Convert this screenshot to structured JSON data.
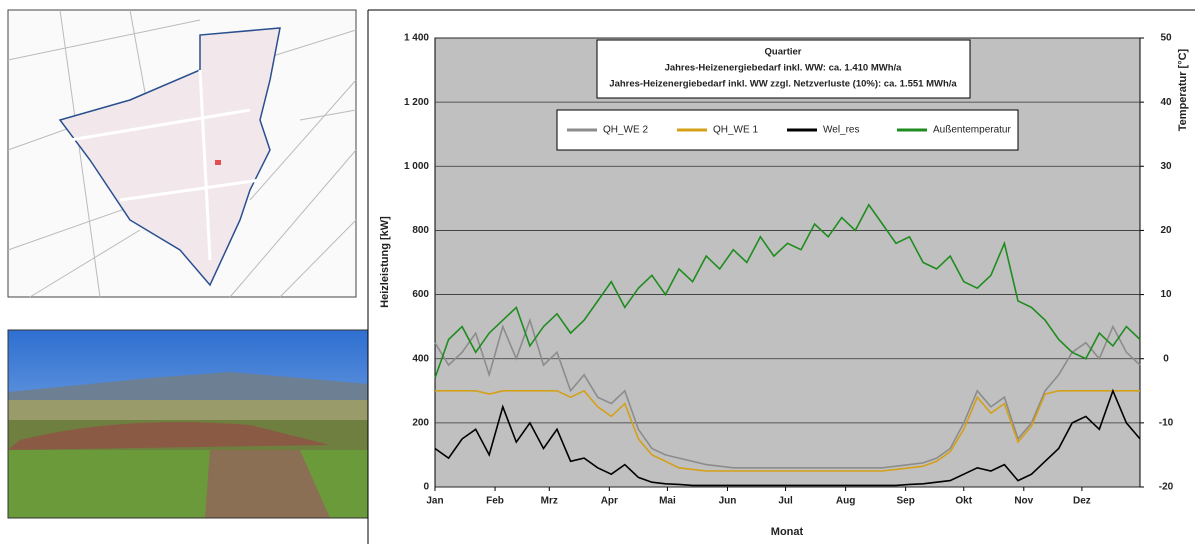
{
  "chart_data": {
    "type": "line",
    "annotations": [
      "Quartier",
      "Jahres-Heizenergiebedarf inkl. WW: ca. 1.410 MWh/a",
      "Jahres-Heizenergiebedarf inkl. WW zzgl. Netzverluste (10%): ca. 1.551 MWh/a"
    ],
    "xlabel": "Monat",
    "ylabel": "Heizleistung [kW]",
    "y2label": "Temperatur [°C]",
    "grid": true,
    "background": "#c0c0c0",
    "x": [
      1,
      8,
      15,
      22,
      29,
      36,
      43,
      50,
      57,
      64,
      71,
      78,
      85,
      92,
      99,
      106,
      113,
      120,
      127,
      134,
      141,
      148,
      155,
      162,
      169,
      176,
      183,
      190,
      197,
      204,
      211,
      218,
      225,
      232,
      239,
      246,
      253,
      260,
      267,
      274,
      281,
      288,
      295,
      302,
      309,
      316,
      323,
      330,
      337,
      344,
      351,
      358,
      365
    ],
    "xlim": [
      1,
      365
    ],
    "xticks": [
      {
        "value": 1,
        "label": "Jan"
      },
      {
        "value": 32,
        "label": "Feb"
      },
      {
        "value": 60,
        "label": "Mrz"
      },
      {
        "value": 91,
        "label": "Apr"
      },
      {
        "value": 121,
        "label": "Mai"
      },
      {
        "value": 152,
        "label": "Jun"
      },
      {
        "value": 182,
        "label": "Jul"
      },
      {
        "value": 213,
        "label": "Aug"
      },
      {
        "value": 244,
        "label": "Sep"
      },
      {
        "value": 274,
        "label": "Okt"
      },
      {
        "value": 305,
        "label": "Nov"
      },
      {
        "value": 335,
        "label": "Dez"
      }
    ],
    "ylim": [
      0,
      1400
    ],
    "yticks": [
      0,
      200,
      400,
      600,
      800,
      {
        "value": 1000,
        "label": "1 000"
      },
      {
        "value": 1200,
        "label": "1 200"
      },
      {
        "value": 1400,
        "label": "1 400"
      }
    ],
    "y2lim": [
      -20,
      50
    ],
    "y2ticks": [
      -20,
      -10,
      0,
      10,
      20,
      30,
      40,
      50
    ],
    "series": [
      {
        "name": "QH_WE 2",
        "color": "#8c8c8c",
        "values": [
          450,
          380,
          420,
          480,
          350,
          500,
          400,
          520,
          380,
          420,
          300,
          350,
          280,
          260,
          300,
          180,
          120,
          100,
          90,
          80,
          70,
          65,
          60,
          60,
          60,
          60,
          60,
          60,
          60,
          60,
          60,
          60,
          60,
          60,
          65,
          70,
          75,
          90,
          120,
          200,
          300,
          250,
          280,
          150,
          200,
          300,
          350,
          420,
          450,
          400,
          500,
          420,
          380
        ]
      },
      {
        "name": "QH_WE 1",
        "color": "#d4a017",
        "values": [
          300,
          300,
          300,
          300,
          290,
          300,
          300,
          300,
          300,
          300,
          280,
          300,
          250,
          220,
          260,
          150,
          100,
          80,
          60,
          55,
          50,
          50,
          50,
          50,
          50,
          50,
          50,
          50,
          50,
          50,
          50,
          50,
          50,
          50,
          55,
          60,
          65,
          80,
          110,
          180,
          280,
          230,
          260,
          140,
          190,
          290,
          300,
          300,
          300,
          300,
          300,
          300,
          300
        ]
      },
      {
        "name": "Wel_res",
        "color": "#000000",
        "values": [
          120,
          90,
          150,
          180,
          100,
          250,
          140,
          200,
          120,
          180,
          80,
          90,
          60,
          40,
          70,
          30,
          15,
          10,
          8,
          5,
          5,
          5,
          5,
          5,
          5,
          5,
          5,
          5,
          5,
          5,
          5,
          5,
          5,
          5,
          5,
          8,
          10,
          15,
          20,
          40,
          60,
          50,
          70,
          20,
          40,
          80,
          120,
          200,
          220,
          180,
          300,
          200,
          150
        ]
      },
      {
        "name": "Außentemperatur",
        "color": "#1f8c1f",
        "axis": "y2",
        "values": [
          -3,
          3,
          5,
          1,
          4,
          6,
          8,
          2,
          5,
          7,
          4,
          6,
          9,
          12,
          8,
          11,
          13,
          10,
          14,
          12,
          16,
          14,
          17,
          15,
          19,
          16,
          18,
          17,
          21,
          19,
          22,
          20,
          24,
          21,
          18,
          19,
          15,
          14,
          16,
          12,
          11,
          13,
          18,
          9,
          8,
          6,
          3,
          1,
          0,
          4,
          2,
          5,
          3
        ]
      }
    ]
  }
}
